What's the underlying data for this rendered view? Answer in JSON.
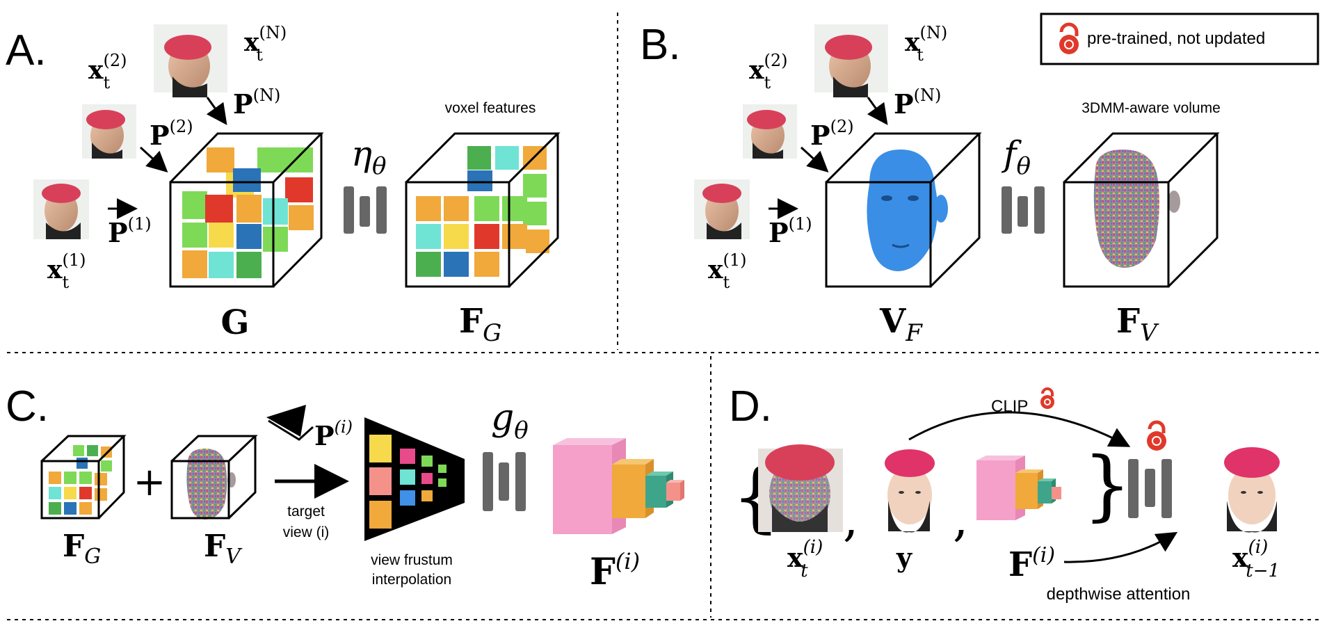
{
  "panels": {
    "a": {
      "letter": "A.",
      "voxel_caption": "voxel features",
      "net": "η",
      "net_sub": "θ",
      "label_left": "G",
      "label_right": "F",
      "label_right_sub": "G"
    },
    "b": {
      "letter": "B.",
      "volume_caption": "3DMM-aware volume",
      "net": "f",
      "net_sub": "θ",
      "label_left": "V",
      "label_left_sub": "F",
      "label_right": "F",
      "label_right_sub": "V"
    },
    "c": {
      "letter": "C.",
      "plus": "+",
      "net": "g",
      "net_sub": "θ",
      "target_line1": "target",
      "target_line2": "view (i)",
      "frustum_line1": "view frustum",
      "frustum_line2": "interpolation",
      "fg": "F",
      "fg_sub": "G",
      "fv": "F",
      "fv_sub": "V",
      "pi": "P",
      "pi_sup": "(i)",
      "fi": "F",
      "fi_sup": "(i)"
    },
    "d": {
      "letter": "D.",
      "clip": "CLIP",
      "depthwise": "depthwise attention",
      "brace_open": "{",
      "brace_close": "}",
      "comma": ",",
      "x": "x",
      "x_sup": "(i)",
      "x_sub": "t",
      "y": "y",
      "f": "F",
      "f_sup": "(i)",
      "out": "x",
      "out_sup": "(i)",
      "out_sub": "t−1"
    }
  },
  "legend": {
    "text": "pre-trained, not updated",
    "icon": "lock-icon"
  },
  "inputs": {
    "x": "x",
    "P": "P",
    "sup_2": "(2)",
    "sup_N": "(N)",
    "sup_1": "(1)",
    "sub_t": "t"
  },
  "colors": {
    "orange": "#f0a93a",
    "green": "#7ed957",
    "blue": "#2b73b7",
    "red": "#e0392b",
    "yellow": "#f7d94c",
    "cyan": "#6fe3d4",
    "darkgreen": "#4caf4f",
    "pink": "#f4a0c8",
    "teal": "#3fa58a",
    "salmon": "#f4928a",
    "face_blue": "#3a8ee6",
    "lock_red": "#e0392b",
    "net_gray": "#666666"
  }
}
